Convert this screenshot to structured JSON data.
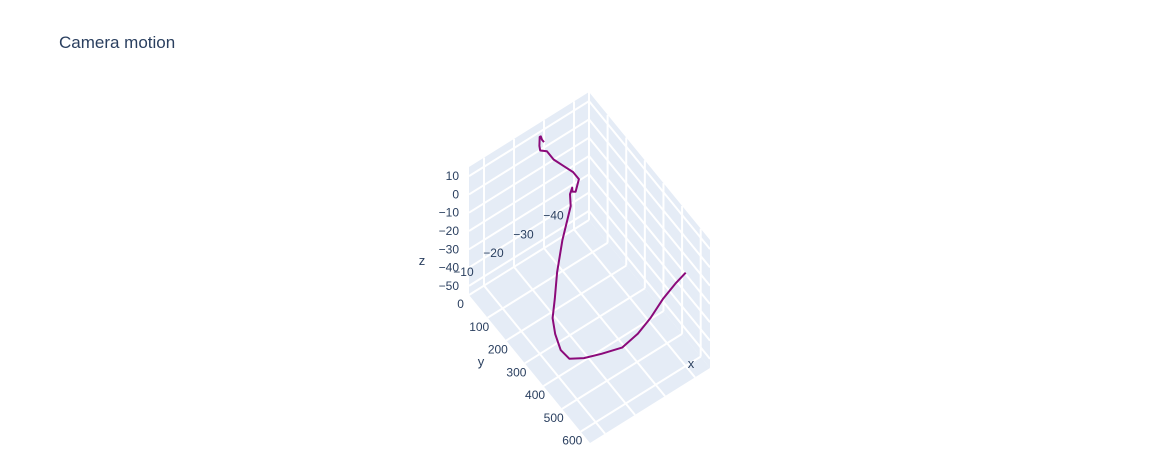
{
  "chart_data": {
    "type": "line3d",
    "title": "Camera motion",
    "axes": {
      "x": {
        "title": "x",
        "ticks": [
          "0",
          "100",
          "200",
          "300",
          "400",
          "500",
          "600"
        ],
        "range": [
          0,
          650
        ]
      },
      "y": {
        "title": "y",
        "ticks": [
          "−40",
          "−30",
          "−20",
          "−10"
        ],
        "range": [
          -45,
          -5
        ]
      },
      "z": {
        "title": "z",
        "ticks": [
          "10",
          "0",
          "−10",
          "−20",
          "−30",
          "−40",
          "−50"
        ],
        "range": [
          -55,
          15
        ]
      }
    },
    "grid": true,
    "background": "#e5ecf6",
    "series": [
      {
        "color": "#8b0a7a",
        "x": [
          600,
          580,
          560,
          540,
          520,
          500,
          470,
          440,
          410,
          380,
          350,
          320,
          300,
          280,
          260,
          240,
          220,
          200,
          185,
          170,
          155,
          140,
          120,
          100,
          80,
          60,
          40,
          25,
          15,
          5,
          0
        ],
        "y": [
          -40,
          -38,
          -35,
          -32,
          -29,
          -25,
          -20,
          -16,
          -13,
          -12,
          -12,
          -13,
          -15,
          -17,
          -20,
          -24,
          -25,
          -27,
          -28,
          -30,
          -32,
          -31,
          -29,
          -27,
          -26,
          -25,
          -26,
          -27,
          -28,
          -29,
          -30
        ],
        "z": [
          -4,
          -10,
          -18,
          -28,
          -36,
          -42,
          -44,
          -46,
          -47,
          -45,
          -40,
          -36,
          -30,
          -20,
          -8,
          4,
          7,
          6,
          1,
          -3,
          0,
          3,
          6,
          9,
          12,
          11,
          10,
          12,
          10,
          6,
          3
        ]
      }
    ]
  }
}
